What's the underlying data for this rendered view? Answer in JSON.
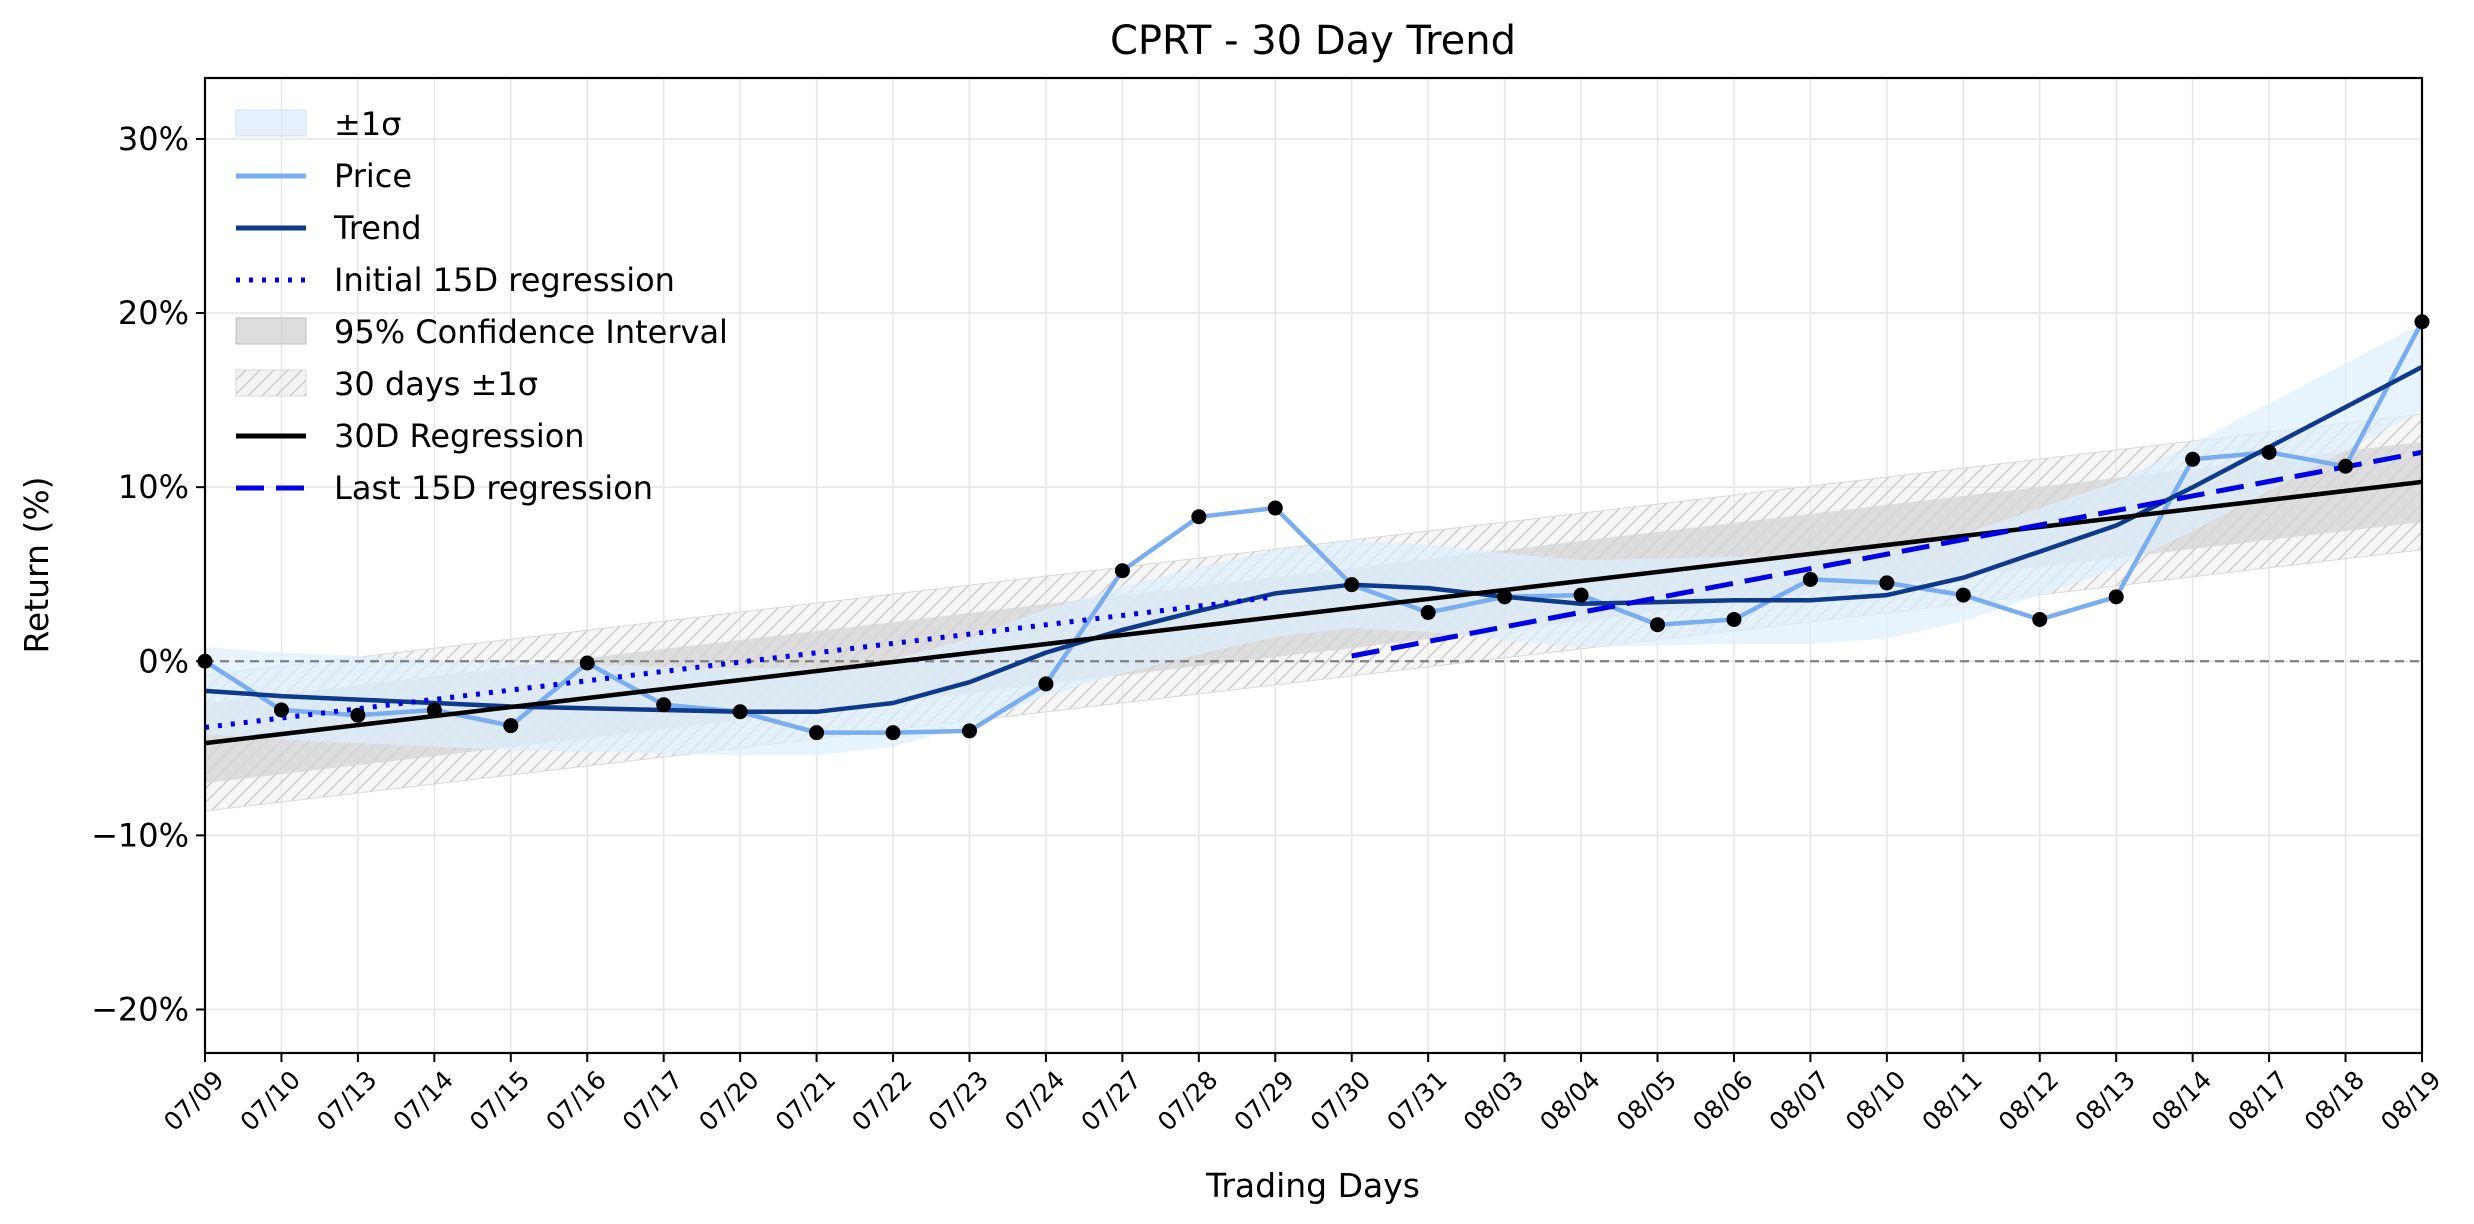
{
  "chart_data": {
    "type": "line",
    "title": "CPRT - 30 Day Trend",
    "xlabel": "Trading Days",
    "ylabel": "Return (%)",
    "ylim": [
      -22.5,
      33.5
    ],
    "yticks": [
      -20,
      -10,
      0,
      10,
      20,
      30
    ],
    "ytick_labels": [
      "−20%",
      "−10%",
      "0%",
      "10%",
      "20%",
      "30%"
    ],
    "grid": true,
    "legend_position": "top-left",
    "categories": [
      "07/09",
      "07/10",
      "07/13",
      "07/14",
      "07/15",
      "07/16",
      "07/17",
      "07/20",
      "07/21",
      "07/22",
      "07/23",
      "07/24",
      "07/27",
      "07/28",
      "07/29",
      "07/30",
      "07/31",
      "08/03",
      "08/04",
      "08/05",
      "08/06",
      "08/07",
      "08/10",
      "08/11",
      "08/12",
      "08/13",
      "08/14",
      "08/17",
      "08/18",
      "08/19"
    ],
    "series": [
      {
        "name": "Price",
        "color": "#78aef0",
        "style": "solid",
        "values": [
          0.0,
          -2.8,
          -3.1,
          -2.8,
          -3.7,
          -0.1,
          -2.5,
          -2.9,
          -4.1,
          -4.1,
          -4.0,
          -1.3,
          5.2,
          8.3,
          8.8,
          4.4,
          2.8,
          3.7,
          3.8,
          2.1,
          2.4,
          4.7,
          4.5,
          3.8,
          2.4,
          3.7,
          11.6,
          12.0,
          11.2,
          19.5
        ]
      },
      {
        "name": "Trend",
        "color": "#0d3a8a",
        "style": "solid",
        "values": [
          -1.7,
          -2.0,
          -2.2,
          -2.4,
          -2.6,
          -2.7,
          -2.8,
          -2.9,
          -2.9,
          -2.4,
          -1.2,
          0.5,
          1.8,
          2.9,
          3.9,
          4.4,
          4.2,
          3.7,
          3.3,
          3.4,
          3.5,
          3.5,
          3.8,
          4.8,
          6.3,
          7.8,
          10.0,
          12.3,
          14.6,
          16.9
        ]
      },
      {
        "name": "Initial 15D regression",
        "color": "#0000e8",
        "style": "dotted",
        "x_range": [
          "07/09",
          "07/29"
        ],
        "start": -3.8,
        "end": 3.7
      },
      {
        "name": "30D Regression",
        "color": "#000000",
        "style": "solid",
        "x_range": [
          "07/09",
          "08/19"
        ],
        "start": -4.7,
        "end": 10.3
      },
      {
        "name": "Last 15D regression",
        "color": "#0000e8",
        "style": "dashed",
        "x_range": [
          "07/30",
          "08/19"
        ],
        "start": 0.3,
        "end": 12.0
      }
    ],
    "bands": [
      {
        "name": "±1σ",
        "color": "#ddeefc",
        "around": "Trend",
        "width": 2.5
      },
      {
        "name": "95% Confidence Interval",
        "color": "#d4d4d4",
        "around": "30D Regression",
        "width": 2.3
      },
      {
        "name": "30 days ±1σ",
        "color": "#ebebeb",
        "pattern": "hatch",
        "around": "30D Regression",
        "width": 3.9
      }
    ],
    "reference_line": {
      "y": 0,
      "color": "#808080",
      "style": "dashed"
    },
    "markers": {
      "series": "Price",
      "color": "#000000"
    },
    "legend": [
      "±1σ",
      "Price",
      "Trend",
      "Initial 15D regression",
      "95% Confidence Interval",
      "30 days ±1σ",
      "30D Regression",
      "Last 15D regression"
    ]
  }
}
